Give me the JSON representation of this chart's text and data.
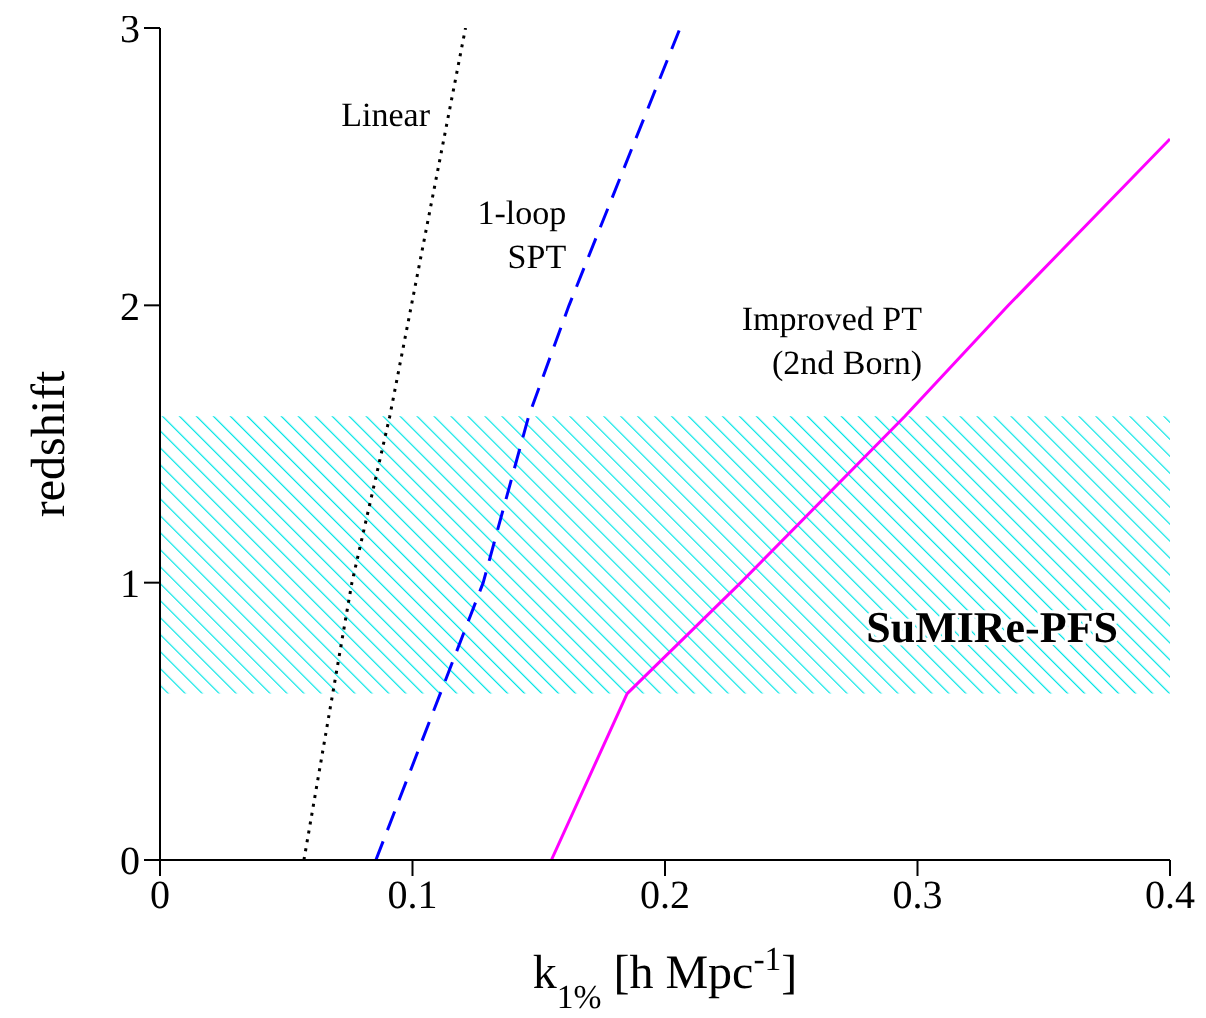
{
  "chart_data": {
    "type": "line",
    "xlabel": "k$_{1%}$ [h Mpc$^{-1}$]",
    "ylabel": "redshift",
    "xlim": [
      0,
      0.4
    ],
    "ylim": [
      0,
      3
    ],
    "xticks": [
      0,
      0.1,
      0.2,
      0.3,
      0.4
    ],
    "yticks": [
      0,
      1,
      2,
      3
    ],
    "grid": false,
    "series": [
      {
        "name": "Linear",
        "color": "#000000",
        "line_style": "dotted",
        "x": [
          0.057,
          0.076,
          0.091,
          0.121
        ],
        "values": [
          0,
          1,
          1.6,
          3
        ]
      },
      {
        "name": "1-loop\nSPT",
        "color": "#0000ff",
        "line_style": "dashed",
        "x": [
          0.0855,
          0.128,
          0.146,
          0.162,
          0.206
        ],
        "values": [
          0,
          1,
          1.6,
          2,
          3
        ]
      },
      {
        "name": "Improved PT\n(2nd Born)",
        "color": "#ff00ff",
        "line_style": "solid",
        "x": [
          0.155,
          0.185,
          0.23,
          0.295,
          0.336,
          0.4
        ],
        "values": [
          0,
          0.6,
          1,
          1.6,
          2,
          2.6
        ]
      }
    ],
    "bands": [
      {
        "axis": "y",
        "from": 0.6,
        "to": 1.6,
        "label": "SuMIRe-PFS",
        "color": "#00e5e5"
      }
    ]
  }
}
